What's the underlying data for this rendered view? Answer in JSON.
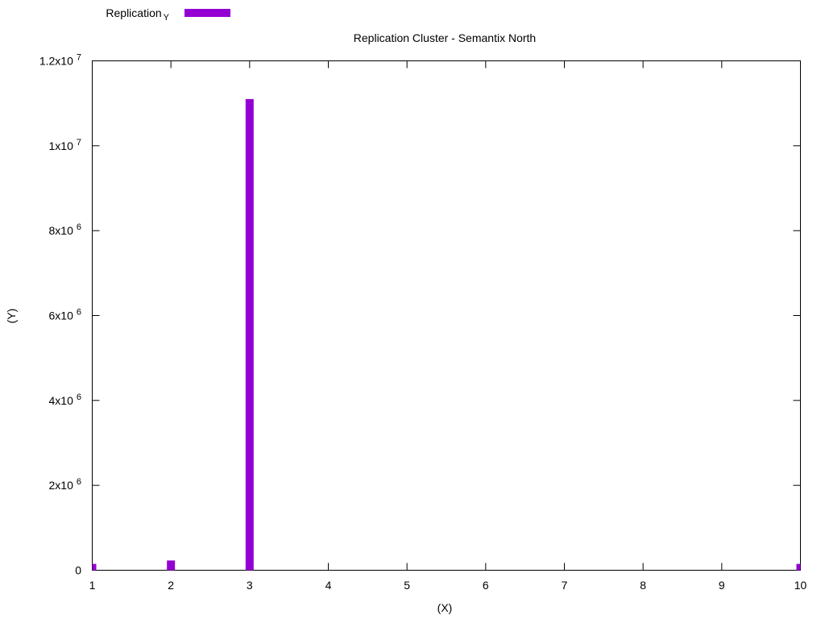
{
  "chart_data": {
    "type": "bar",
    "title": "Replication Cluster - Semantix North",
    "xlabel": "(X)",
    "ylabel": "(Y)",
    "xlim": [
      1,
      10
    ],
    "ylim": [
      0,
      12000000
    ],
    "x_ticks": [
      {
        "value": 1,
        "label": "1"
      },
      {
        "value": 2,
        "label": "2"
      },
      {
        "value": 3,
        "label": "3"
      },
      {
        "value": 4,
        "label": "4"
      },
      {
        "value": 5,
        "label": "5"
      },
      {
        "value": 6,
        "label": "6"
      },
      {
        "value": 7,
        "label": "7"
      },
      {
        "value": 8,
        "label": "8"
      },
      {
        "value": 9,
        "label": "9"
      },
      {
        "value": 10,
        "label": "10"
      }
    ],
    "y_ticks": [
      {
        "value": 0,
        "mantissa": "0",
        "exponent": ""
      },
      {
        "value": 2000000,
        "mantissa": "2x10",
        "exponent": "6"
      },
      {
        "value": 4000000,
        "mantissa": "4x10",
        "exponent": "6"
      },
      {
        "value": 6000000,
        "mantissa": "6x10",
        "exponent": "6"
      },
      {
        "value": 8000000,
        "mantissa": "8x10",
        "exponent": "6"
      },
      {
        "value": 10000000,
        "mantissa": "1x10",
        "exponent": "7"
      },
      {
        "value": 12000000,
        "mantissa": "1.2x10",
        "exponent": "7"
      }
    ],
    "grid": false,
    "legend": {
      "placement": "top-left, outside plot",
      "entries": [
        {
          "name": "Replication",
          "subscript": "Y",
          "color": "#9400d3"
        }
      ]
    },
    "series": [
      {
        "name": "Replication",
        "color": "#9400d3",
        "points": [
          {
            "x": 1,
            "y": 150000
          },
          {
            "x": 2,
            "y": 230000
          },
          {
            "x": 3,
            "y": 11100000
          },
          {
            "x": 10,
            "y": 150000
          }
        ]
      }
    ]
  }
}
